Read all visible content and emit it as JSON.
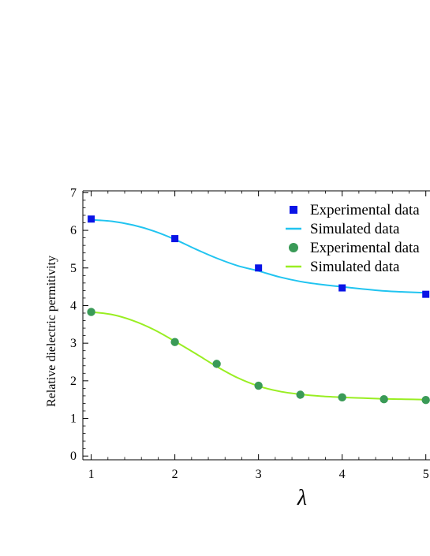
{
  "chart_data": {
    "type": "scatter",
    "title": "",
    "xlabel": "λ",
    "ylabel": "Relative dielectric permitivity",
    "xlim": [
      0.9,
      5.05
    ],
    "ylim": [
      -0.1,
      7.05
    ],
    "xticks": [
      1,
      2,
      3,
      4,
      5
    ],
    "yticks": [
      0,
      1,
      2,
      3,
      4,
      5,
      6,
      7
    ],
    "grid": false,
    "legend_position": "top-right",
    "series": [
      {
        "name": "Experimental data",
        "kind": "scatter",
        "marker": "square",
        "color": "#0a14e6",
        "x": [
          1,
          2,
          3,
          4,
          5
        ],
        "y": [
          6.3,
          5.78,
          5.0,
          4.47,
          4.3
        ]
      },
      {
        "name": "Simulated data",
        "kind": "line",
        "color": "#21c4f0",
        "x": [
          1,
          1.25,
          1.5,
          1.75,
          2,
          2.25,
          2.5,
          2.75,
          3,
          3.25,
          3.5,
          3.75,
          4,
          4.25,
          4.5,
          4.75,
          5
        ],
        "y": [
          6.28,
          6.24,
          6.14,
          5.98,
          5.76,
          5.5,
          5.26,
          5.06,
          4.92,
          4.76,
          4.64,
          4.56,
          4.5,
          4.44,
          4.39,
          4.36,
          4.34
        ]
      },
      {
        "name": "Experimental data",
        "kind": "scatter",
        "marker": "circle",
        "color": "#3a9a57",
        "x": [
          1,
          2,
          2.5,
          3,
          3.5,
          4,
          4.5,
          5
        ],
        "y": [
          3.83,
          3.03,
          2.45,
          1.87,
          1.63,
          1.56,
          1.51,
          1.49
        ]
      },
      {
        "name": "Simulated data",
        "kind": "line",
        "color": "#99ee22",
        "x": [
          1,
          1.25,
          1.5,
          1.75,
          2,
          2.25,
          2.5,
          2.75,
          3,
          3.25,
          3.5,
          3.75,
          4,
          4.25,
          4.5,
          4.75,
          5
        ],
        "y": [
          3.83,
          3.76,
          3.6,
          3.36,
          3.05,
          2.72,
          2.38,
          2.08,
          1.86,
          1.72,
          1.64,
          1.59,
          1.56,
          1.54,
          1.52,
          1.51,
          1.5
        ]
      }
    ]
  }
}
